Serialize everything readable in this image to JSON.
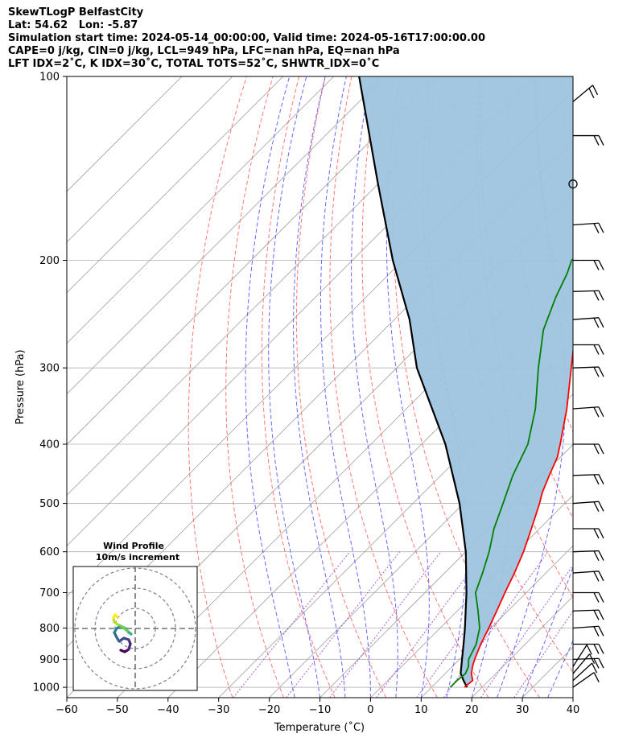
{
  "header": {
    "line1": "SkewTLogP BelfastCity",
    "line2": "Lat: 54.62   Lon: -5.87",
    "line3": "Simulation start time: 2024-05-14_00:00:00, Valid time: 2024-05-16T17:00:00.00",
    "line4": "CAPE=0 j/kg, CIN=0 j/kg, LCL=949 hPa, LFC=nan hPa, EQ=nan hPa",
    "line5": "LFT IDX=2˚C, K IDX=30˚C, TOTAL TOTS=52˚C, SHWTR_IDX=0˚C"
  },
  "chart_data": {
    "type": "line",
    "subtype": "skew-t log-p",
    "xlabel": "Temperature (˚C)",
    "ylabel": "Pressure (hPa)",
    "xlim": [
      -60,
      40
    ],
    "ylim": [
      1040,
      100
    ],
    "y_scale": "log",
    "skew": "45 degrees",
    "grid": true,
    "x_ticks": [
      -60,
      -50,
      -40,
      -30,
      -20,
      -10,
      0,
      10,
      20,
      30,
      40
    ],
    "y_ticks": [
      1000,
      900,
      800,
      700,
      600,
      500,
      400,
      300,
      200,
      100
    ],
    "colors": {
      "temperature": "#ff0000",
      "dewpoint": "#008000",
      "parcel": "#000000",
      "shade": "#9fc4df",
      "dry_adiabat": "#ff6666",
      "moist_adiabat": "#4b4bff",
      "mixing_ratio": "#9933cc",
      "isotherm": "#a0a0a0"
    },
    "series": [
      {
        "name": "temperature",
        "points": [
          [
            1000,
            16.5
          ],
          [
            975,
            16.8
          ],
          [
            950,
            15.2
          ],
          [
            925,
            14.0
          ],
          [
            900,
            13.0
          ],
          [
            850,
            11.2
          ],
          [
            800,
            9.6
          ],
          [
            750,
            7.8
          ],
          [
            700,
            5.8
          ],
          [
            650,
            3.8
          ],
          [
            600,
            1.4
          ],
          [
            550,
            -1.6
          ],
          [
            500,
            -5.0
          ],
          [
            480,
            -6.6
          ],
          [
            450,
            -8.6
          ],
          [
            420,
            -10.6
          ],
          [
            400,
            -12.6
          ],
          [
            350,
            -18.3
          ],
          [
            300,
            -25.5
          ],
          [
            250,
            -34.0
          ],
          [
            235,
            -37.2
          ],
          [
            220,
            -37.2
          ],
          [
            210,
            -31.2
          ],
          [
            200,
            -31.5
          ],
          [
            180,
            -29.5
          ],
          [
            160,
            -27.5
          ],
          [
            140,
            -25.8
          ],
          [
            120,
            -22.3
          ],
          [
            110,
            -21.1
          ],
          [
            100,
            -20.9
          ]
        ]
      },
      {
        "name": "dewpoint",
        "points": [
          [
            1000,
            13.7
          ],
          [
            975,
            13.7
          ],
          [
            950,
            14.0
          ],
          [
            925,
            13.2
          ],
          [
            900,
            11.8
          ],
          [
            850,
            10.3
          ],
          [
            800,
            7.8
          ],
          [
            750,
            4.1
          ],
          [
            700,
            0.0
          ],
          [
            650,
            -2.5
          ],
          [
            600,
            -5.4
          ],
          [
            550,
            -9.0
          ],
          [
            500,
            -12.2
          ],
          [
            450,
            -15.8
          ],
          [
            400,
            -19.0
          ],
          [
            350,
            -24.5
          ],
          [
            300,
            -32.0
          ],
          [
            260,
            -38.5
          ],
          [
            230,
            -42.5
          ],
          [
            210,
            -45.0
          ],
          [
            200,
            -46.7
          ],
          [
            185,
            -46.0
          ],
          [
            175,
            -48.5
          ],
          [
            165,
            -52.5
          ],
          [
            150,
            -49.5
          ],
          [
            130,
            -45.5
          ],
          [
            110,
            -41.5
          ],
          [
            100,
            -38.5
          ]
        ]
      },
      {
        "name": "parcel",
        "points": [
          [
            1000,
            17.0
          ],
          [
            975,
            15.0
          ],
          [
            949,
            13.0
          ],
          [
            900,
            10.5
          ],
          [
            850,
            7.8
          ],
          [
            800,
            4.9
          ],
          [
            700,
            -1.8
          ],
          [
            600,
            -10.0
          ],
          [
            500,
            -20.8
          ],
          [
            400,
            -35.3
          ],
          [
            300,
            -56.0
          ],
          [
            250,
            -67.0
          ],
          [
            200,
            -82.0
          ],
          [
            150,
            -100.0
          ],
          [
            100,
            -125.0
          ]
        ]
      }
    ],
    "wind_barbs_hPa": [
      1000,
      975,
      950,
      925,
      900,
      850,
      800,
      750,
      700,
      650,
      600,
      550,
      500,
      450,
      400,
      350,
      300,
      275,
      250,
      225,
      200,
      175,
      150,
      125,
      110
    ],
    "calm_winds_hPa": [
      150,
      135
    ],
    "inset": {
      "title": "Wind Profile",
      "subtitle": "10m/s increment",
      "rings": 3,
      "colormap": "viridis"
    }
  }
}
